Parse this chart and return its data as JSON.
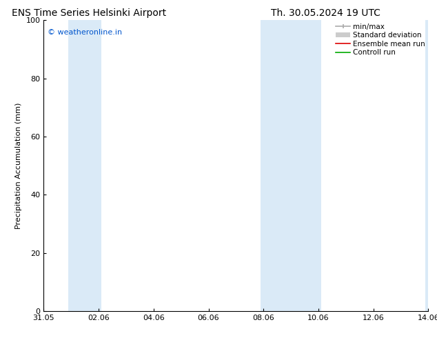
{
  "title_left": "ENS Time Series Helsinki Airport",
  "title_right": "Th. 30.05.2024 19 UTC",
  "ylabel": "Precipitation Accumulation (mm)",
  "ylim": [
    0,
    100
  ],
  "yticks": [
    0,
    20,
    40,
    60,
    80,
    100
  ],
  "xtick_labels": [
    "31.05",
    "02.06",
    "04.06",
    "06.06",
    "08.06",
    "10.06",
    "12.06",
    "14.06"
  ],
  "xtick_positions": [
    0,
    2,
    4,
    6,
    8,
    10,
    12,
    14
  ],
  "x_total_days": 14,
  "shaded_bands": [
    {
      "xstart": 0.9,
      "xend": 2.1,
      "color": "#daeaf7"
    },
    {
      "xstart": 7.9,
      "xend": 10.1,
      "color": "#daeaf7"
    },
    {
      "xstart": 13.9,
      "xend": 14.0,
      "color": "#daeaf7"
    }
  ],
  "watermark_text": "© weatheronline.in",
  "watermark_color": "#0055cc",
  "background_color": "#ffffff",
  "legend_entries": [
    {
      "label": "min/max",
      "color": "#aaaaaa",
      "lw": 1.2,
      "style": "minmax"
    },
    {
      "label": "Standard deviation",
      "color": "#cccccc",
      "lw": 5,
      "style": "stddev"
    },
    {
      "label": "Ensemble mean run",
      "color": "#dd0000",
      "lw": 1.2,
      "style": "line"
    },
    {
      "label": "Controll run",
      "color": "#00aa00",
      "lw": 1.2,
      "style": "line"
    }
  ],
  "title_fontsize": 10,
  "axis_fontsize": 8,
  "watermark_fontsize": 8,
  "legend_fontsize": 7.5
}
